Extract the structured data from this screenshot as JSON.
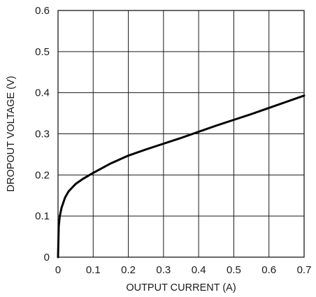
{
  "chart_data": {
    "type": "line",
    "title": "",
    "xlabel": "OUTPUT CURRENT (A)",
    "ylabel": "DROPOUT VOLTAGE (V)",
    "xlim": [
      0,
      0.7
    ],
    "ylim": [
      0,
      0.6
    ],
    "x_ticks": [
      "0",
      "0.1",
      "0.2",
      "0.3",
      "0.4",
      "0.5",
      "0.6",
      "0.7"
    ],
    "y_ticks": [
      "0",
      "0.1",
      "0.2",
      "0.3",
      "0.4",
      "0.5",
      "0.6"
    ],
    "grid": true,
    "legend": "none",
    "series": [
      {
        "x": [
          0,
          0.002,
          0.005,
          0.01,
          0.02,
          0.03,
          0.05,
          0.07,
          0.1,
          0.15,
          0.2,
          0.25,
          0.3,
          0.35,
          0.4,
          0.45,
          0.5,
          0.55,
          0.6,
          0.65,
          0.7
        ],
        "y": [
          0,
          0.075,
          0.1,
          0.12,
          0.145,
          0.16,
          0.178,
          0.19,
          0.205,
          0.228,
          0.247,
          0.262,
          0.276,
          0.29,
          0.305,
          0.32,
          0.334,
          0.348,
          0.363,
          0.378,
          0.393
        ]
      }
    ],
    "colors": {
      "line": "#000000",
      "grid": "#1a1a1a"
    }
  }
}
